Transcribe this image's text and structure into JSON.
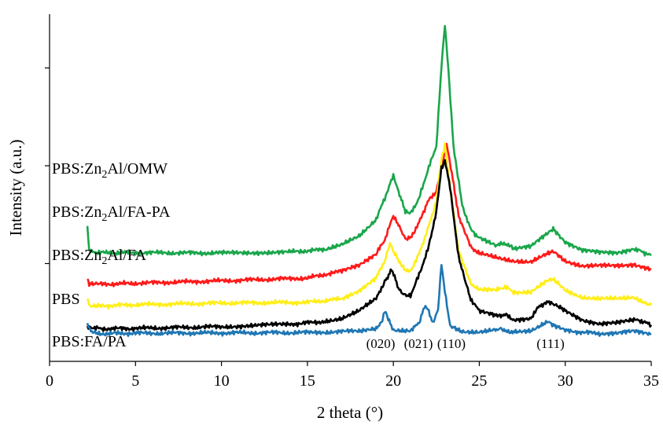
{
  "chart_data": {
    "type": "line",
    "title": "",
    "xlabel": "2 theta (°)",
    "ylabel": "Intensity (a.u.)",
    "xlim": [
      0,
      35
    ],
    "x_ticks": [
      "0",
      "5",
      "10",
      "15",
      "20",
      "25",
      "30",
      "35"
    ],
    "y_ticks": [
      "",
      "",
      ""
    ],
    "grid": false,
    "legend": "none",
    "series_labels": [
      {
        "main": "PBS:Zn",
        "sub": "2",
        "rest": "Al/OMW",
        "series": "PBS:Zn2Al/OMW"
      },
      {
        "main": "PBS:Zn",
        "sub": "2",
        "rest": "Al/FA-PA",
        "series": "PBS:Zn2Al/FA-PA"
      },
      {
        "main": "PBS:Zn",
        "sub": "2",
        "rest": "Al/FA",
        "series": "PBS:Zn2Al/FA"
      },
      {
        "main": "PBS",
        "sub": "",
        "rest": "",
        "series": "PBS"
      },
      {
        "main": "PBS:FA/PA",
        "sub": "",
        "rest": "",
        "series": "PBS:FA/PA"
      }
    ],
    "annotations": [
      "(020)",
      "(021)",
      "(110)",
      "(111)"
    ],
    "series": [
      {
        "name": "PBS:Zn2Al/OMW",
        "color": "#1aa64b",
        "points": [
          [
            2.2,
            0.385
          ],
          [
            2.3,
            0.322
          ],
          [
            2.5,
            0.315
          ],
          [
            3,
            0.313
          ],
          [
            5,
            0.313
          ],
          [
            10,
            0.312
          ],
          [
            14,
            0.315
          ],
          [
            16,
            0.322
          ],
          [
            17,
            0.335
          ],
          [
            18,
            0.36
          ],
          [
            19,
            0.41
          ],
          [
            19.5,
            0.47
          ],
          [
            20,
            0.535
          ],
          [
            20.3,
            0.49
          ],
          [
            20.7,
            0.43
          ],
          [
            21,
            0.425
          ],
          [
            21.5,
            0.47
          ],
          [
            22,
            0.55
          ],
          [
            22.5,
            0.62
          ],
          [
            22.8,
            0.85
          ],
          [
            23,
            0.97
          ],
          [
            23.2,
            0.84
          ],
          [
            23.5,
            0.62
          ],
          [
            24,
            0.45
          ],
          [
            24.5,
            0.38
          ],
          [
            25,
            0.355
          ],
          [
            26,
            0.335
          ],
          [
            26.5,
            0.34
          ],
          [
            27,
            0.325
          ],
          [
            28,
            0.33
          ],
          [
            29,
            0.37
          ],
          [
            29.3,
            0.38
          ],
          [
            30,
            0.345
          ],
          [
            31,
            0.32
          ],
          [
            32,
            0.313
          ],
          [
            33,
            0.313
          ],
          [
            34,
            0.325
          ],
          [
            34.5,
            0.315
          ],
          [
            35,
            0.305
          ]
        ]
      },
      {
        "name": "PBS:Zn2Al/FA-PA",
        "color": "#ff1a1a",
        "points": [
          [
            2.2,
            0.24
          ],
          [
            2.3,
            0.225
          ],
          [
            3,
            0.222
          ],
          [
            5,
            0.225
          ],
          [
            10,
            0.232
          ],
          [
            15,
            0.24
          ],
          [
            17,
            0.26
          ],
          [
            18,
            0.275
          ],
          [
            19,
            0.31
          ],
          [
            19.5,
            0.35
          ],
          [
            20,
            0.42
          ],
          [
            20.3,
            0.395
          ],
          [
            20.7,
            0.35
          ],
          [
            21,
            0.355
          ],
          [
            21.5,
            0.4
          ],
          [
            22,
            0.46
          ],
          [
            22.5,
            0.49
          ],
          [
            22.8,
            0.56
          ],
          [
            23.1,
            0.625
          ],
          [
            23.4,
            0.54
          ],
          [
            23.8,
            0.42
          ],
          [
            24.5,
            0.33
          ],
          [
            25,
            0.31
          ],
          [
            26,
            0.3
          ],
          [
            27,
            0.29
          ],
          [
            28,
            0.285
          ],
          [
            29,
            0.31
          ],
          [
            29.3,
            0.315
          ],
          [
            30,
            0.29
          ],
          [
            31,
            0.275
          ],
          [
            32,
            0.275
          ],
          [
            33,
            0.275
          ],
          [
            34,
            0.28
          ],
          [
            35,
            0.265
          ]
        ]
      },
      {
        "name": "PBS:Zn2Al/FA",
        "color": "#ffee1a",
        "points": [
          [
            2.2,
            0.18
          ],
          [
            2.3,
            0.162
          ],
          [
            3,
            0.16
          ],
          [
            5,
            0.163
          ],
          [
            10,
            0.168
          ],
          [
            15,
            0.17
          ],
          [
            17,
            0.18
          ],
          [
            18,
            0.2
          ],
          [
            19,
            0.24
          ],
          [
            19.5,
            0.29
          ],
          [
            19.8,
            0.34
          ],
          [
            20.2,
            0.3
          ],
          [
            20.7,
            0.26
          ],
          [
            21,
            0.26
          ],
          [
            21.5,
            0.31
          ],
          [
            22,
            0.38
          ],
          [
            22.5,
            0.46
          ],
          [
            22.8,
            0.58
          ],
          [
            23,
            0.625
          ],
          [
            23.3,
            0.5
          ],
          [
            23.8,
            0.32
          ],
          [
            24.5,
            0.225
          ],
          [
            25,
            0.205
          ],
          [
            26,
            0.205
          ],
          [
            26.5,
            0.215
          ],
          [
            27,
            0.2
          ],
          [
            28,
            0.2
          ],
          [
            29,
            0.232
          ],
          [
            29.3,
            0.235
          ],
          [
            30,
            0.205
          ],
          [
            31,
            0.185
          ],
          [
            32,
            0.18
          ],
          [
            33,
            0.18
          ],
          [
            34,
            0.185
          ],
          [
            35,
            0.162
          ]
        ]
      },
      {
        "name": "PBS",
        "color": "#000000",
        "points": [
          [
            2.2,
            0.1
          ],
          [
            2.5,
            0.098
          ],
          [
            3,
            0.094
          ],
          [
            5,
            0.095
          ],
          [
            10,
            0.1
          ],
          [
            14,
            0.107
          ],
          [
            16,
            0.115
          ],
          [
            17,
            0.125
          ],
          [
            18,
            0.145
          ],
          [
            19,
            0.18
          ],
          [
            19.5,
            0.23
          ],
          [
            19.9,
            0.265
          ],
          [
            20.3,
            0.21
          ],
          [
            20.7,
            0.19
          ],
          [
            21,
            0.19
          ],
          [
            21.5,
            0.25
          ],
          [
            22,
            0.32
          ],
          [
            22.5,
            0.43
          ],
          [
            22.8,
            0.555
          ],
          [
            23,
            0.58
          ],
          [
            23.3,
            0.5
          ],
          [
            23.8,
            0.3
          ],
          [
            24.5,
            0.18
          ],
          [
            25,
            0.145
          ],
          [
            26,
            0.13
          ],
          [
            26.5,
            0.135
          ],
          [
            27,
            0.12
          ],
          [
            28,
            0.125
          ],
          [
            28.5,
            0.16
          ],
          [
            29,
            0.17
          ],
          [
            29.3,
            0.165
          ],
          [
            30,
            0.145
          ],
          [
            31,
            0.12
          ],
          [
            32,
            0.108
          ],
          [
            33,
            0.11
          ],
          [
            34,
            0.12
          ],
          [
            34.5,
            0.115
          ],
          [
            35,
            0.105
          ]
        ]
      },
      {
        "name": "PBS:FA/PA",
        "color": "#1f77b4",
        "points": [
          [
            2.2,
            0.11
          ],
          [
            2.4,
            0.085
          ],
          [
            3,
            0.08
          ],
          [
            5,
            0.081
          ],
          [
            10,
            0.082
          ],
          [
            15,
            0.083
          ],
          [
            18,
            0.087
          ],
          [
            19,
            0.092
          ],
          [
            19.3,
            0.11
          ],
          [
            19.5,
            0.145
          ],
          [
            19.7,
            0.125
          ],
          [
            20,
            0.09
          ],
          [
            21,
            0.09
          ],
          [
            21.5,
            0.11
          ],
          [
            21.8,
            0.16
          ],
          [
            22,
            0.15
          ],
          [
            22.3,
            0.11
          ],
          [
            22.6,
            0.15
          ],
          [
            22.8,
            0.28
          ],
          [
            23,
            0.2
          ],
          [
            23.3,
            0.1
          ],
          [
            24,
            0.087
          ],
          [
            25,
            0.085
          ],
          [
            26,
            0.09
          ],
          [
            26.2,
            0.095
          ],
          [
            26.5,
            0.086
          ],
          [
            27,
            0.085
          ],
          [
            28,
            0.09
          ],
          [
            28.7,
            0.105
          ],
          [
            29,
            0.115
          ],
          [
            29.3,
            0.105
          ],
          [
            30,
            0.088
          ],
          [
            32,
            0.08
          ],
          [
            33,
            0.08
          ],
          [
            34,
            0.087
          ],
          [
            35,
            0.08
          ]
        ]
      }
    ]
  }
}
